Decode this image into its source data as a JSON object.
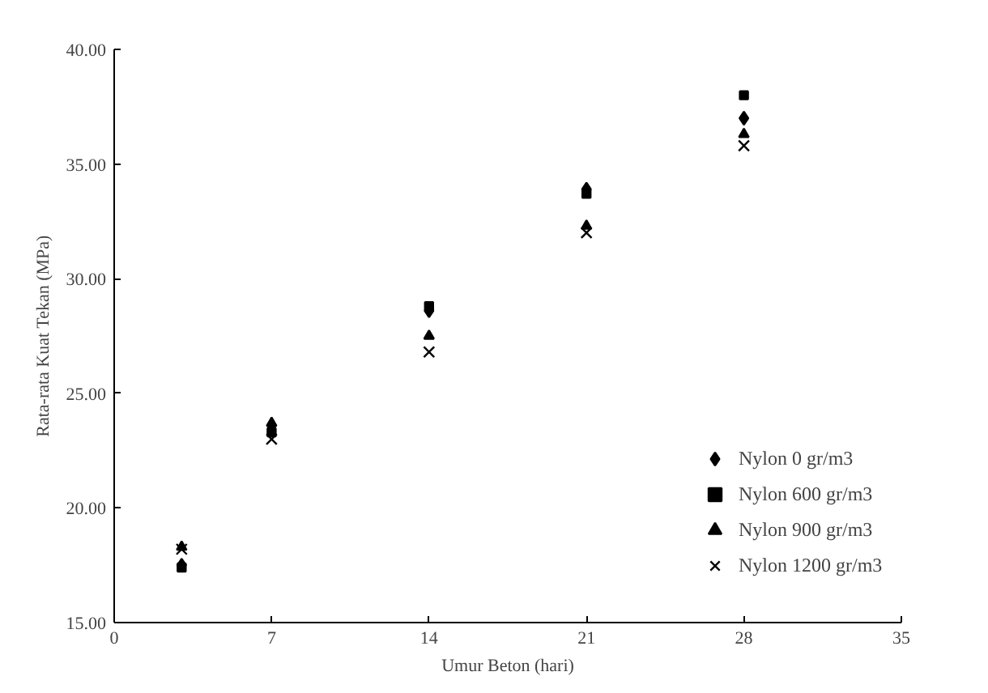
{
  "chart_data": {
    "type": "scatter",
    "xlabel": "Umur Beton (hari)",
    "ylabel": "Rata-rata Kuat Tekan (MPa)",
    "x": [
      3,
      7,
      14,
      21,
      28
    ],
    "xlim": [
      0,
      35
    ],
    "xticks": [
      0,
      7,
      14,
      21,
      28,
      35
    ],
    "ylim": [
      15,
      40
    ],
    "yticks": [
      {
        "value": 15,
        "label": "15.00"
      },
      {
        "value": 20,
        "label": "20.00"
      },
      {
        "value": 25,
        "label": "25.00"
      },
      {
        "value": 30,
        "label": "30.00"
      },
      {
        "value": 35,
        "label": "35.00"
      },
      {
        "value": 40,
        "label": "40.00"
      }
    ],
    "grid": false,
    "legend": "right",
    "series": [
      {
        "name": "Nylon 0 gr/m3",
        "color": "#000000",
        "marker": "diamond",
        "values": [
          17.5,
          23.6,
          28.6,
          33.9,
          37.0
        ]
      },
      {
        "name": "Nylon 600 gr/m3",
        "color": "#000000",
        "marker": "square",
        "values": [
          17.4,
          23.3,
          28.8,
          33.7,
          38.0
        ]
      },
      {
        "name": "Nylon 900 gr/m3",
        "color": "#000000",
        "marker": "triangle",
        "values": [
          18.3,
          23.7,
          27.5,
          32.3,
          36.3
        ]
      },
      {
        "name": "Nylon 1200 gr/m3",
        "color": "#000000",
        "marker": "x",
        "values": [
          18.2,
          23.0,
          26.8,
          32.0,
          35.8
        ]
      }
    ]
  }
}
